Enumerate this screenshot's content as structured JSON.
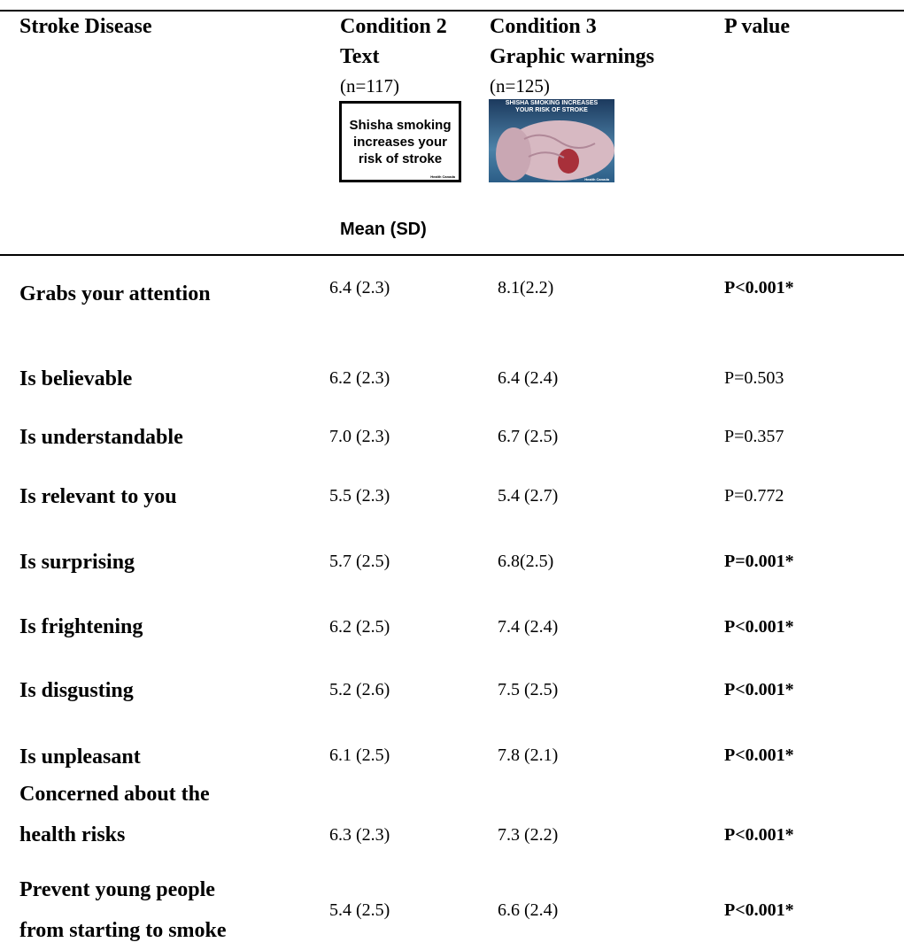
{
  "table": {
    "header": {
      "row_label": "Stroke Disease",
      "columns": [
        {
          "title": [
            "Condition 2",
            "Text"
          ],
          "n": "(n=117)",
          "image_text": [
            "Shisha smoking",
            "increases your",
            "risk of stroke"
          ],
          "image_credit": "Health Canada"
        },
        {
          "title": [
            "Condition 3",
            "Graphic warnings"
          ],
          "n": "(n=125)",
          "image_text": [
            "SHISHA SMOKING INCREASES",
            "YOUR RISK OF STROKE"
          ],
          "image_credit": "Health Canada"
        }
      ],
      "p_header": "P value",
      "measure": "Mean (SD)"
    },
    "rows": [
      {
        "label": [
          "Grabs your attention"
        ],
        "c2": "6.4 (2.3)",
        "c3": "8.1(2.2)",
        "p": "P<0.001*",
        "significant": true
      },
      {
        "label": [
          "Is believable"
        ],
        "c2": "6.2 (2.3)",
        "c3": "6.4 (2.4)",
        "p": "P=0.503",
        "significant": false
      },
      {
        "label": [
          "Is understandable"
        ],
        "c2": "7.0 (2.3)",
        "c3": "6.7 (2.5)",
        "p": "P=0.357",
        "significant": false
      },
      {
        "label": [
          "Is relevant to you"
        ],
        "c2": "5.5 (2.3)",
        "c3": "5.4 (2.7)",
        "p": "P=0.772",
        "significant": false
      },
      {
        "label": [
          "Is surprising"
        ],
        "c2": "5.7 (2.5)",
        "c3": "6.8(2.5)",
        "p": "P=0.001*",
        "significant": true
      },
      {
        "label": [
          "Is frightening"
        ],
        "c2": "6.2 (2.5)",
        "c3": "7.4 (2.4)",
        "p": "P<0.001*",
        "significant": true
      },
      {
        "label": [
          "Is disgusting"
        ],
        "c2": "5.2 (2.6)",
        "c3": "7.5 (2.5)",
        "p": "P<0.001*",
        "significant": true
      },
      {
        "label": [
          "Is unpleasant"
        ],
        "c2": "6.1 (2.5)",
        "c3": "7.8 (2.1)",
        "p": "P<0.001*",
        "significant": true
      },
      {
        "label": [
          "Concerned about the",
          "health risks"
        ],
        "c2": "6.3 (2.3)",
        "c3": "7.3 (2.2)",
        "p": "P<0.001*",
        "significant": true
      },
      {
        "label": [
          "Prevent young people",
          "from starting to smoke"
        ],
        "c2": "5.4 (2.5)",
        "c3": "6.6 (2.4)",
        "p": "P<0.001*",
        "significant": true
      }
    ]
  }
}
